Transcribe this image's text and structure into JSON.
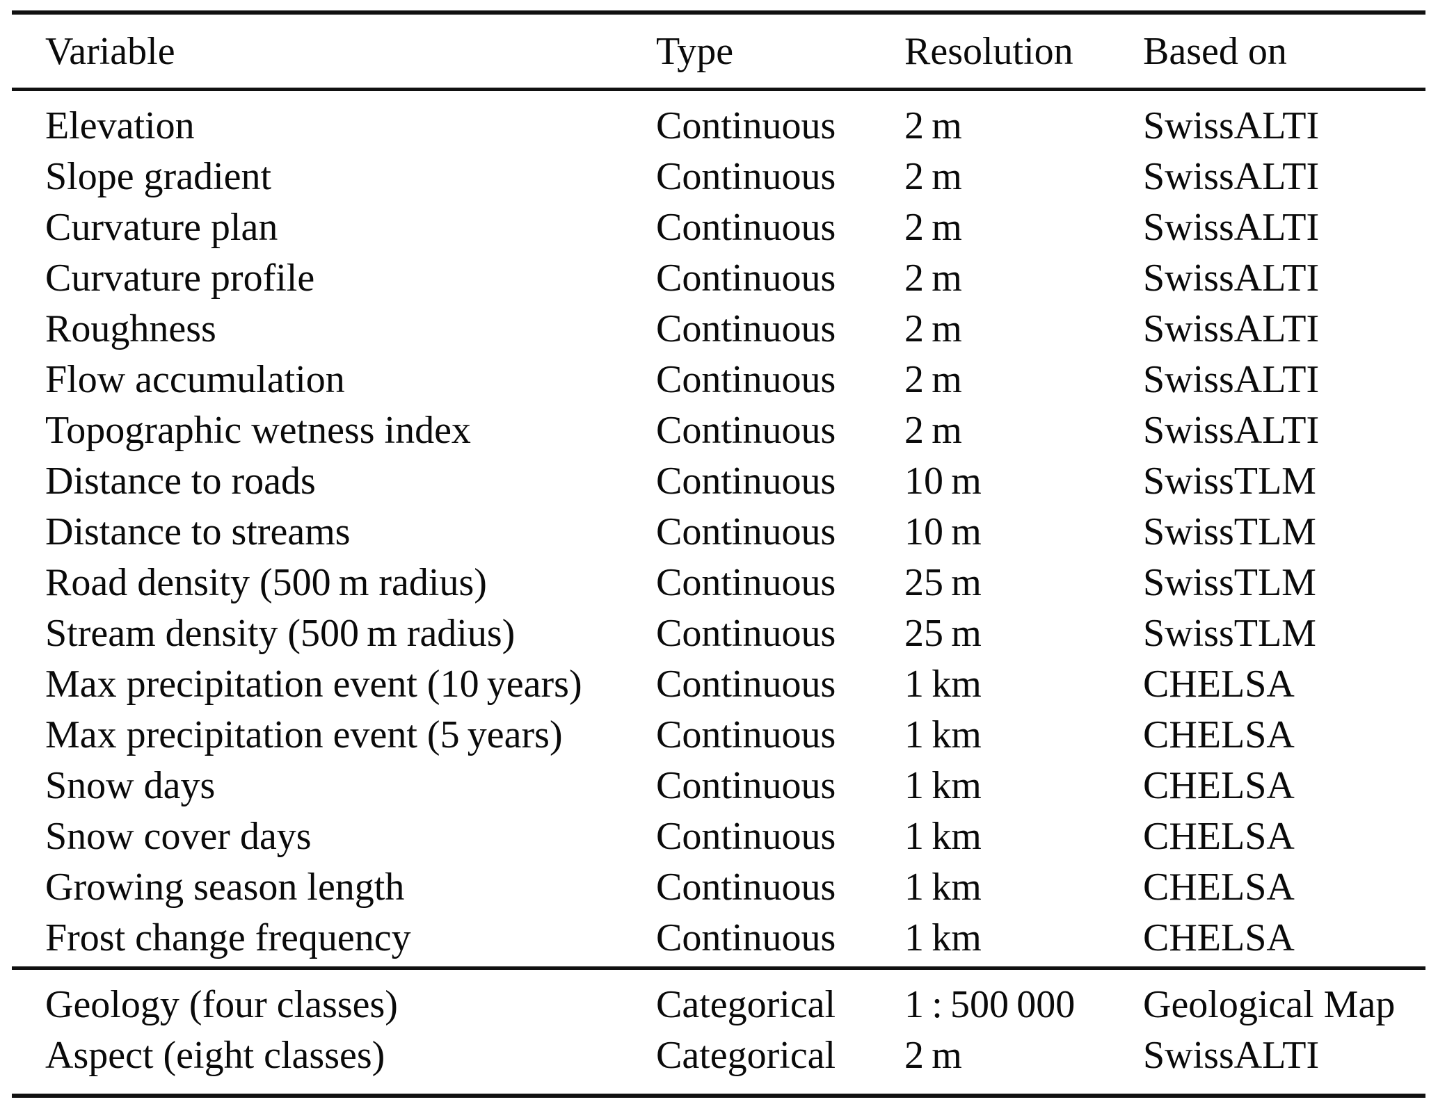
{
  "table": {
    "columns": [
      {
        "label": "Variable"
      },
      {
        "label": "Type"
      },
      {
        "label": "Resolution"
      },
      {
        "label": "Based on"
      }
    ],
    "sections": [
      {
        "rows": [
          {
            "variable": "Elevation",
            "type": "Continuous",
            "resolution": "2 m",
            "based_on": "SwissALTI"
          },
          {
            "variable": "Slope gradient",
            "type": "Continuous",
            "resolution": "2 m",
            "based_on": "SwissALTI"
          },
          {
            "variable": "Curvature plan",
            "type": "Continuous",
            "resolution": "2 m",
            "based_on": "SwissALTI"
          },
          {
            "variable": "Curvature profile",
            "type": "Continuous",
            "resolution": "2 m",
            "based_on": "SwissALTI"
          },
          {
            "variable": "Roughness",
            "type": "Continuous",
            "resolution": "2 m",
            "based_on": "SwissALTI"
          },
          {
            "variable": "Flow accumulation",
            "type": "Continuous",
            "resolution": "2 m",
            "based_on": "SwissALTI"
          },
          {
            "variable": "Topographic wetness index",
            "type": "Continuous",
            "resolution": "2 m",
            "based_on": "SwissALTI"
          },
          {
            "variable": "Distance to roads",
            "type": "Continuous",
            "resolution": "10 m",
            "based_on": "SwissTLM"
          },
          {
            "variable": "Distance to streams",
            "type": "Continuous",
            "resolution": "10 m",
            "based_on": "SwissTLM"
          },
          {
            "variable": "Road density (500 m radius)",
            "type": "Continuous",
            "resolution": "25 m",
            "based_on": "SwissTLM"
          },
          {
            "variable": "Stream density (500 m radius)",
            "type": "Continuous",
            "resolution": "25 m",
            "based_on": "SwissTLM"
          },
          {
            "variable": "Max precipitation event (10 years)",
            "type": "Continuous",
            "resolution": "1 km",
            "based_on": "CHELSA"
          },
          {
            "variable": "Max precipitation event (5 years)",
            "type": "Continuous",
            "resolution": "1 km",
            "based_on": "CHELSA"
          },
          {
            "variable": "Snow days",
            "type": "Continuous",
            "resolution": "1 km",
            "based_on": "CHELSA"
          },
          {
            "variable": "Snow cover days",
            "type": "Continuous",
            "resolution": "1 km",
            "based_on": "CHELSA"
          },
          {
            "variable": "Growing season length",
            "type": "Continuous",
            "resolution": "1 km",
            "based_on": "CHELSA"
          },
          {
            "variable": "Frost change frequency",
            "type": "Continuous",
            "resolution": "1 km",
            "based_on": "CHELSA"
          }
        ]
      },
      {
        "rows": [
          {
            "variable": "Geology (four classes)",
            "type": "Categorical",
            "resolution": "1 : 500 000",
            "based_on": "Geological Map"
          },
          {
            "variable": "Aspect (eight classes)",
            "type": "Categorical",
            "resolution": "2 m",
            "based_on": "SwissALTI"
          }
        ]
      }
    ]
  }
}
